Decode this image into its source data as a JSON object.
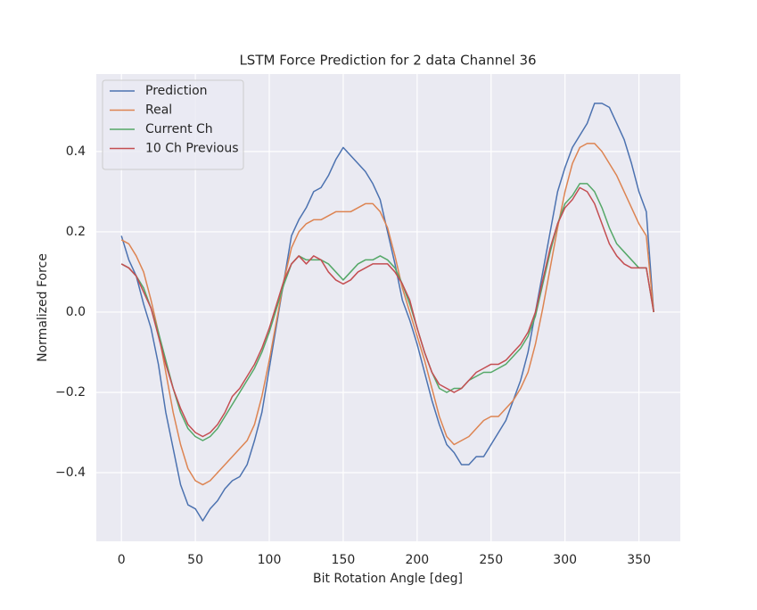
{
  "chart_data": {
    "type": "line",
    "title": "LSTM Force Prediction for 2 data Channel 36",
    "x_label": "Bit Rotation Angle [deg]",
    "y_label": "Normalized Force",
    "x": [
      0,
      5,
      10,
      15,
      20,
      25,
      30,
      35,
      40,
      45,
      50,
      55,
      60,
      65,
      70,
      75,
      80,
      85,
      90,
      95,
      100,
      105,
      110,
      115,
      120,
      125,
      130,
      135,
      140,
      145,
      150,
      155,
      160,
      165,
      170,
      175,
      180,
      185,
      190,
      195,
      200,
      205,
      210,
      215,
      220,
      225,
      230,
      235,
      240,
      245,
      250,
      255,
      260,
      265,
      270,
      275,
      280,
      285,
      290,
      295,
      300,
      305,
      310,
      315,
      320,
      325,
      330,
      335,
      340,
      345,
      350,
      355,
      360
    ],
    "series": [
      {
        "name": "Prediction",
        "color": "#4c72b0",
        "values": [
          0.19,
          0.13,
          0.09,
          0.02,
          -0.04,
          -0.13,
          -0.25,
          -0.34,
          -0.43,
          -0.48,
          -0.49,
          -0.52,
          -0.49,
          -0.47,
          -0.44,
          -0.42,
          -0.41,
          -0.38,
          -0.32,
          -0.25,
          -0.14,
          -0.03,
          0.08,
          0.19,
          0.23,
          0.26,
          0.3,
          0.31,
          0.34,
          0.38,
          0.41,
          0.39,
          0.37,
          0.35,
          0.32,
          0.28,
          0.2,
          0.12,
          0.03,
          -0.02,
          -0.08,
          -0.15,
          -0.22,
          -0.28,
          -0.33,
          -0.35,
          -0.38,
          -0.38,
          -0.36,
          -0.36,
          -0.33,
          -0.3,
          -0.27,
          -0.22,
          -0.17,
          -0.1,
          0.0,
          0.1,
          0.2,
          0.3,
          0.36,
          0.41,
          0.44,
          0.47,
          0.52,
          0.52,
          0.51,
          0.47,
          0.43,
          0.37,
          0.3,
          0.25,
          0.0
        ]
      },
      {
        "name": "Real",
        "color": "#dd8452",
        "values": [
          0.18,
          0.17,
          0.14,
          0.1,
          0.03,
          -0.05,
          -0.15,
          -0.25,
          -0.33,
          -0.39,
          -0.42,
          -0.43,
          -0.42,
          -0.4,
          -0.38,
          -0.36,
          -0.34,
          -0.32,
          -0.28,
          -0.21,
          -0.12,
          -0.02,
          0.08,
          0.16,
          0.2,
          0.22,
          0.23,
          0.23,
          0.24,
          0.25,
          0.25,
          0.25,
          0.26,
          0.27,
          0.27,
          0.25,
          0.21,
          0.14,
          0.06,
          0.0,
          -0.06,
          -0.12,
          -0.19,
          -0.26,
          -0.31,
          -0.33,
          -0.32,
          -0.31,
          -0.29,
          -0.27,
          -0.26,
          -0.26,
          -0.24,
          -0.22,
          -0.19,
          -0.15,
          -0.08,
          0.01,
          0.11,
          0.21,
          0.3,
          0.37,
          0.41,
          0.42,
          0.42,
          0.4,
          0.37,
          0.34,
          0.3,
          0.26,
          0.22,
          0.19,
          0.0
        ]
      },
      {
        "name": "Current Ch",
        "color": "#55a868",
        "values": [
          0.12,
          0.11,
          0.09,
          0.06,
          0.01,
          -0.05,
          -0.12,
          -0.19,
          -0.25,
          -0.29,
          -0.31,
          -0.32,
          -0.31,
          -0.29,
          -0.26,
          -0.23,
          -0.2,
          -0.17,
          -0.14,
          -0.1,
          -0.05,
          0.01,
          0.07,
          0.12,
          0.14,
          0.13,
          0.13,
          0.13,
          0.12,
          0.1,
          0.08,
          0.1,
          0.12,
          0.13,
          0.13,
          0.14,
          0.13,
          0.11,
          0.07,
          0.02,
          -0.04,
          -0.1,
          -0.15,
          -0.19,
          -0.2,
          -0.19,
          -0.19,
          -0.17,
          -0.16,
          -0.15,
          -0.15,
          -0.14,
          -0.13,
          -0.11,
          -0.09,
          -0.06,
          -0.01,
          0.07,
          0.15,
          0.22,
          0.27,
          0.29,
          0.32,
          0.32,
          0.3,
          0.26,
          0.21,
          0.17,
          0.15,
          0.13,
          0.11,
          0.11,
          0.0
        ]
      },
      {
        "name": "10 Ch Previous",
        "color": "#c44e52",
        "values": [
          0.12,
          0.11,
          0.09,
          0.05,
          0.01,
          -0.06,
          -0.13,
          -0.19,
          -0.24,
          -0.28,
          -0.3,
          -0.31,
          -0.3,
          -0.28,
          -0.25,
          -0.21,
          -0.19,
          -0.16,
          -0.13,
          -0.09,
          -0.04,
          0.02,
          0.08,
          0.12,
          0.14,
          0.12,
          0.14,
          0.13,
          0.1,
          0.08,
          0.07,
          0.08,
          0.1,
          0.11,
          0.12,
          0.12,
          0.12,
          0.1,
          0.07,
          0.03,
          -0.04,
          -0.1,
          -0.15,
          -0.18,
          -0.19,
          -0.2,
          -0.19,
          -0.17,
          -0.15,
          -0.14,
          -0.13,
          -0.13,
          -0.12,
          -0.1,
          -0.08,
          -0.05,
          0.0,
          0.08,
          0.16,
          0.22,
          0.26,
          0.28,
          0.31,
          0.3,
          0.27,
          0.22,
          0.17,
          0.14,
          0.12,
          0.11,
          0.11,
          0.11,
          0.0
        ]
      }
    ],
    "xlim": [
      -17,
      378
    ],
    "ylim": [
      -0.571,
      0.593
    ],
    "xticks": [
      0,
      50,
      100,
      150,
      200,
      250,
      300,
      350
    ],
    "yticks": [
      {
        "value": -0.4,
        "label": "−0.4"
      },
      {
        "value": -0.2,
        "label": "−0.2"
      },
      {
        "value": 0,
        "label": "0.0"
      },
      0.2,
      0.4
    ],
    "grid": true,
    "legend": "upper-left"
  }
}
